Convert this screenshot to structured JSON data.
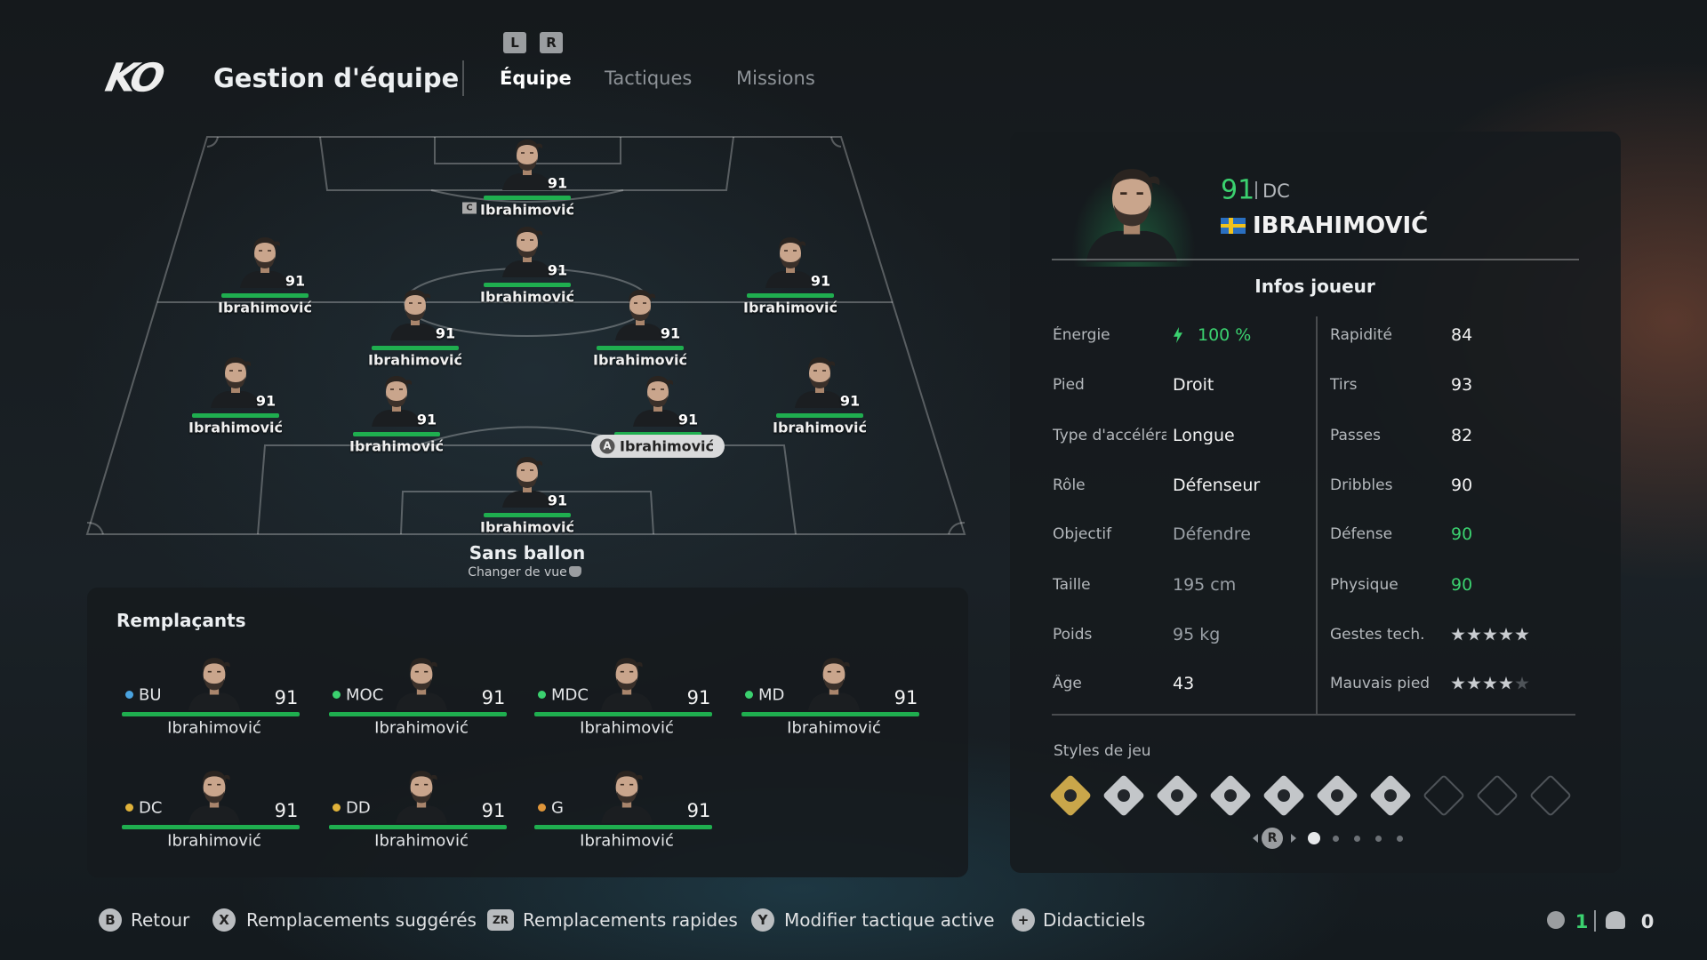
{
  "header": {
    "logo": "KO",
    "title": "Gestion d'équipe",
    "bumpers": [
      "L",
      "R"
    ],
    "tabs": [
      "Équipe",
      "Tactiques",
      "Missions"
    ]
  },
  "pitch": {
    "players": [
      {
        "name": "Ibrahimović",
        "rating": 91,
        "badge": "C"
      },
      {
        "name": "Ibrahimović",
        "rating": 91
      },
      {
        "name": "Ibrahimović",
        "rating": 91
      },
      {
        "name": "Ibrahimović",
        "rating": 91
      },
      {
        "name": "Ibrahimović",
        "rating": 91
      },
      {
        "name": "Ibrahimović",
        "rating": 91
      },
      {
        "name": "Ibrahimović",
        "rating": 91
      },
      {
        "name": "Ibrahimović",
        "rating": 91
      },
      {
        "name": "Ibrahimović",
        "rating": 91,
        "key": "A"
      },
      {
        "name": "Ibrahimović",
        "rating": 91
      },
      {
        "name": "Ibrahimović",
        "rating": 91
      }
    ],
    "view": "Sans ballon",
    "view_hint": "Changer de vue"
  },
  "substitutes": {
    "title": "Remplaçants",
    "players": [
      {
        "position": "BU",
        "dot": "#4aa3e0",
        "rating": 91,
        "name": "Ibrahimović"
      },
      {
        "position": "MOC",
        "dot": "#3bd16f",
        "rating": 91,
        "name": "Ibrahimović"
      },
      {
        "position": "MDC",
        "dot": "#3bd16f",
        "rating": 91,
        "name": "Ibrahimović"
      },
      {
        "position": "MD",
        "dot": "#3bd16f",
        "rating": 91,
        "name": "Ibrahimović"
      },
      {
        "position": "DC",
        "dot": "#e0b23a",
        "rating": 91,
        "name": "Ibrahimović"
      },
      {
        "position": "DD",
        "dot": "#e0b23a",
        "rating": 91,
        "name": "Ibrahimović"
      },
      {
        "position": "G",
        "dot": "#e0963a",
        "rating": 91,
        "name": "Ibrahimović"
      }
    ]
  },
  "player_panel": {
    "rating": 91,
    "position": "DC",
    "name": "IBRAHIMOVIĆ",
    "section": "Infos joueur",
    "info": [
      {
        "label": "Énergie",
        "value": "100 %",
        "color": "#3bd16f"
      },
      {
        "label": "Pied",
        "value": "Droit"
      },
      {
        "label": "Type d'accéléra",
        "value": "Longue"
      },
      {
        "label": "Rôle",
        "value": "Défenseur"
      },
      {
        "label": "Objectif",
        "value": "Défendre",
        "color": "#9aa0a6"
      },
      {
        "label": "Taille",
        "value": "195 cm",
        "color": "#9aa0a6"
      },
      {
        "label": "Poids",
        "value": "95 kg",
        "color": "#9aa0a6"
      },
      {
        "label": "Âge",
        "value": 43
      }
    ],
    "stats": [
      {
        "label": "Rapidité",
        "value": 84
      },
      {
        "label": "Tirs",
        "value": 93
      },
      {
        "label": "Passes",
        "value": 82
      },
      {
        "label": "Dribbles",
        "value": 90
      },
      {
        "label": "Défense",
        "value": 90,
        "color": "#3bd16f"
      },
      {
        "label": "Physique",
        "value": 90,
        "color": "#3bd16f"
      },
      {
        "label": "Gestes tech.",
        "stars": 5
      },
      {
        "label": "Mauvais pied",
        "stars": 4
      }
    ],
    "styles_title": "Styles de jeu",
    "pager_key": "R"
  },
  "footer": {
    "actions": [
      {
        "key": "B",
        "label": "Retour"
      },
      {
        "key": "X",
        "label": "Remplacements suggérés"
      },
      {
        "key": "ZR",
        "label": "Remplacements rapides"
      },
      {
        "key": "Y",
        "label": "Modifier tactique active"
      },
      {
        "key": "+",
        "label": "Didacticiels"
      }
    ],
    "counts": [
      1,
      0
    ]
  }
}
